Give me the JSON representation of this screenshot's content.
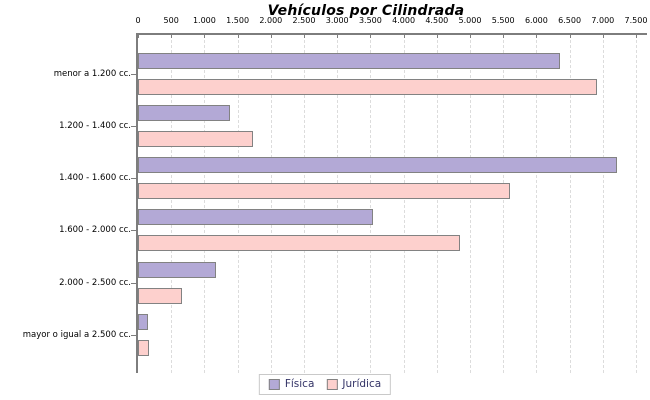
{
  "chart_data": {
    "type": "bar",
    "orientation": "horizontal",
    "title": "Vehículos por Cilindrada",
    "categories": [
      "menor a 1.200 cc.",
      "1.200 - 1.400 cc.",
      "1.400 - 1.600 cc.",
      "1.600 - 2.000 cc.",
      "2.000 - 2.500 cc.",
      "mayor o igual a 2.500 cc."
    ],
    "series": [
      {
        "name": "Física",
        "color": "#b3a9d6",
        "values": [
          6350,
          1390,
          7220,
          3540,
          1170,
          155
        ]
      },
      {
        "name": "Jurídica",
        "color": "#fdd0cd",
        "values": [
          6910,
          1730,
          5600,
          4850,
          670,
          165
        ]
      }
    ],
    "xlim": [
      0,
      7500
    ],
    "x_tick_interval": 500,
    "x_tick_labels": [
      "0",
      "500",
      "1.000",
      "1.500",
      "2.000",
      "2.500",
      "3.000",
      "3.500",
      "4.000",
      "4.500",
      "5.000",
      "5.500",
      "6.000",
      "6.500",
      "7.000",
      "7.500"
    ],
    "grid": "vertical-dashed",
    "axis_position": "top",
    "legend_position": "bottom-center"
  },
  "legend": {
    "items": [
      "Física",
      "Jurídica"
    ]
  },
  "colors": {
    "bar_fisica": "#b3a9d6",
    "bar_juridica": "#fdd0cd",
    "bar_border": "#828282",
    "axis": "#7d7d7d",
    "gridline": "#dcdcdc",
    "legend_text": "#333366",
    "legend_border": "#c9c9c9",
    "text": "#000000",
    "background": "#ffffff"
  }
}
